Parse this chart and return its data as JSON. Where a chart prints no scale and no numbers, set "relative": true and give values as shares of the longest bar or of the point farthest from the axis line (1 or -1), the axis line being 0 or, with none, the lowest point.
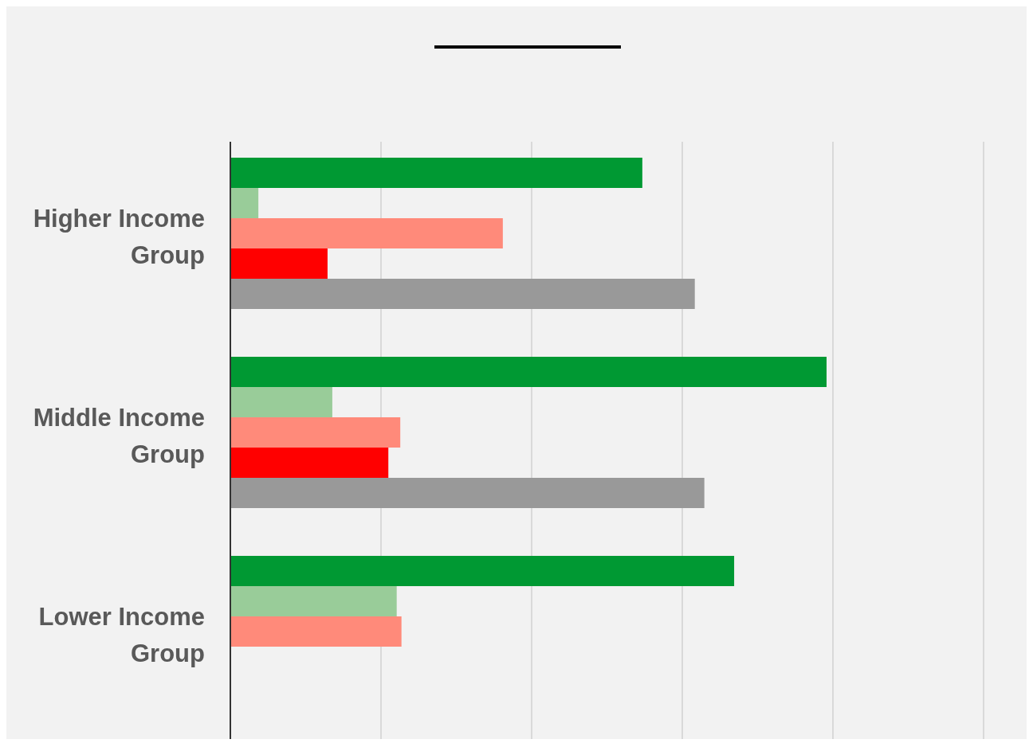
{
  "chart_data": {
    "type": "bar",
    "orientation": "horizontal",
    "relative": true,
    "grid": "x",
    "categories": [
      "Higher Income Group",
      "Middle Income Group",
      "Lower Income Group"
    ],
    "series": [
      {
        "color": "#009933",
        "values": [
          0.691,
          1.0,
          0.845
        ]
      },
      {
        "color": "#99cc99",
        "values": [
          0.047,
          0.171,
          0.279
        ]
      },
      {
        "color": "#ff8a7a",
        "values": [
          0.457,
          0.285,
          0.287
        ]
      },
      {
        "color": "#ff0000",
        "values": [
          0.163,
          0.265,
          null
        ]
      },
      {
        "color": "#999999",
        "values": [
          0.779,
          0.795,
          null
        ]
      }
    ]
  }
}
